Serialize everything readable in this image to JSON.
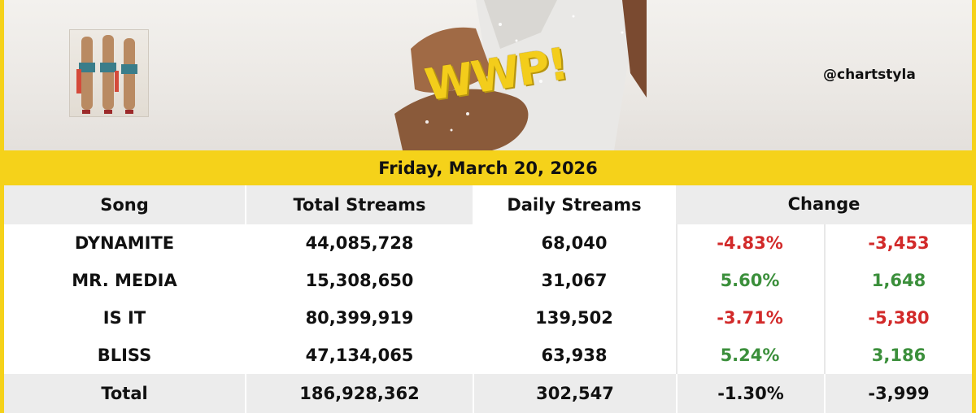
{
  "header": {
    "logo_text": "WWP!",
    "handle": "@chartstyla"
  },
  "date": "Friday, March 20, 2026",
  "table": {
    "columns": [
      "Song",
      "Total Streams",
      "Daily Streams",
      "Change"
    ],
    "rows": [
      {
        "song": "DYNAMITE",
        "total": "44,085,728",
        "daily": "68,040",
        "pct": "-4.83%",
        "diff": "-3,453",
        "trend": "down"
      },
      {
        "song": "MR. MEDIA",
        "total": "15,308,650",
        "daily": "31,067",
        "pct": "5.60%",
        "diff": "1,648",
        "trend": "up"
      },
      {
        "song": "IS IT",
        "total": "80,399,919",
        "daily": "139,502",
        "pct": "-3.71%",
        "diff": "-5,380",
        "trend": "down"
      },
      {
        "song": "BLISS",
        "total": "47,134,065",
        "daily": "63,938",
        "pct": "5.24%",
        "diff": "3,186",
        "trend": "up"
      }
    ],
    "total_row": {
      "song": "Total",
      "total": "186,928,362",
      "daily": "302,547",
      "pct": "-1.30%",
      "diff": "-3,999"
    }
  },
  "colors": {
    "accent_yellow": "#f5d21a",
    "negative": "#d22a2a",
    "positive": "#3b8f3b",
    "header_shade": "#ececec"
  }
}
